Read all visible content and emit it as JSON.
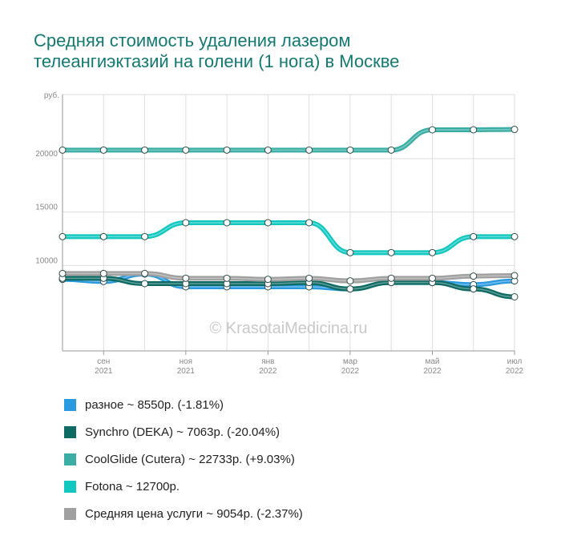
{
  "title_lines": [
    "Средняя стоимость удаления лазером",
    "телеангиэктазий на голени (1 нога) в Москве"
  ],
  "watermark": "© KrasotaiMedicina.ru",
  "chart_data": {
    "type": "line",
    "ylabel": "руб.",
    "ylim": [
      2000,
      26000
    ],
    "y_ticks": [
      {
        "value": 10000,
        "label": "10000"
      },
      {
        "value": 15000,
        "label": "15000"
      },
      {
        "value": 20000,
        "label": "20000"
      }
    ],
    "x": [
      "2021-08",
      "2021-09",
      "2021-10",
      "2021-11",
      "2021-12",
      "2022-01",
      "2022-02",
      "2022-03",
      "2022-04",
      "2022-05",
      "2022-06",
      "2022-07"
    ],
    "x_ticks": [
      {
        "index": 1,
        "month": "сен",
        "year": "2021"
      },
      {
        "index": 3,
        "month": "ноя",
        "year": "2021"
      },
      {
        "index": 5,
        "month": "янв",
        "year": "2022"
      },
      {
        "index": 7,
        "month": "мар",
        "year": "2022"
      },
      {
        "index": 9,
        "month": "май",
        "year": "2022"
      },
      {
        "index": 11,
        "month": "июл",
        "year": "2022"
      }
    ],
    "grid": true,
    "legend_position": "bottom",
    "series": [
      {
        "name": "разное",
        "legend": "разное ~ 8550р. (-1.81%)",
        "color": "#2a9ae0",
        "values": [
          8700,
          8500,
          9200,
          8000,
          8000,
          8000,
          8000,
          7800,
          8400,
          8400,
          8200,
          8550
        ]
      },
      {
        "name": "Synchro (DEKA)",
        "legend": "Synchro (DEKA) ~ 7063р. (-20.04%)",
        "color": "#0e6b63",
        "values": [
          8800,
          8800,
          8300,
          8300,
          8300,
          8300,
          8400,
          7800,
          8400,
          8400,
          7800,
          7063
        ]
      },
      {
        "name": "CoolGlide (Cutera)",
        "legend": "CoolGlide (Cutera) ~ 22733р. (+9.03%)",
        "color": "#3aaea4",
        "values": [
          20800,
          20800,
          20800,
          20800,
          20800,
          20800,
          20800,
          20800,
          20800,
          22700,
          22700,
          22733
        ]
      },
      {
        "name": "Fotona",
        "legend": "Fotona ~ 12700р.",
        "color": "#10c8c0",
        "values": [
          12700,
          12700,
          12700,
          14000,
          14000,
          14000,
          14000,
          11200,
          11200,
          11200,
          12700,
          12700
        ]
      },
      {
        "name": "Средняя цена услуги",
        "legend": "Средняя цена услуги ~ 9054р. (-2.37%)",
        "color": "#a0a0a0",
        "values": [
          9250,
          9250,
          9250,
          8800,
          8800,
          8700,
          8800,
          8550,
          8800,
          8800,
          9000,
          9054
        ]
      }
    ]
  }
}
